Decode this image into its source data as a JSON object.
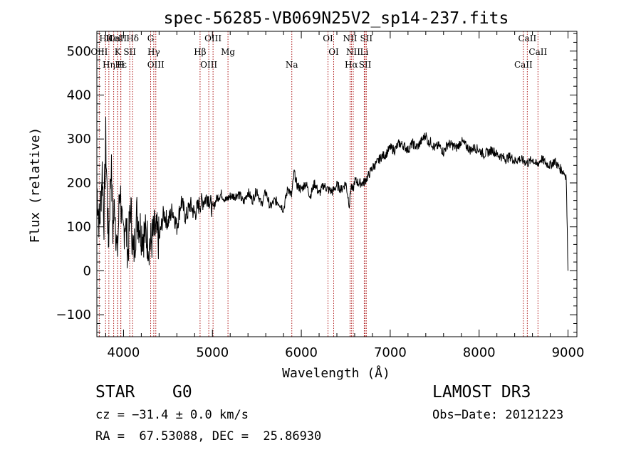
{
  "chart_data": {
    "type": "line",
    "title": "spec-56285-VB069N25V2_sp14-237.fits",
    "xlabel": "Wavelength (Å)",
    "ylabel": "Flux (relative)",
    "xlim": [
      3700,
      9100
    ],
    "ylim": [
      -150,
      545
    ],
    "x_ticks": [
      4000,
      5000,
      6000,
      7000,
      8000,
      9000
    ],
    "y_ticks": [
      -100,
      0,
      100,
      200,
      300,
      400,
      500
    ],
    "series_color": "#000000",
    "line_color": "#b22222",
    "series": [
      {
        "name": "spectrum",
        "x": [
          3700,
          3730,
          3760,
          3780,
          3800,
          3830,
          3860,
          3880,
          3900,
          3930,
          3960,
          3990,
          4020,
          4050,
          4080,
          4110,
          4150,
          4200,
          4250,
          4300,
          4350,
          4400,
          4450,
          4500,
          4550,
          4600,
          4650,
          4700,
          4750,
          4800,
          4850,
          4900,
          4950,
          5000,
          5050,
          5100,
          5150,
          5200,
          5250,
          5300,
          5350,
          5400,
          5450,
          5500,
          5550,
          5600,
          5650,
          5700,
          5750,
          5800,
          5850,
          5890,
          5920,
          5950,
          6000,
          6050,
          6100,
          6150,
          6200,
          6250,
          6300,
          6350,
          6400,
          6450,
          6500,
          6540,
          6560,
          6580,
          6600,
          6650,
          6700,
          6750,
          6800,
          6850,
          6900,
          6950,
          7000,
          7050,
          7100,
          7150,
          7200,
          7250,
          7300,
          7350,
          7400,
          7430,
          7450,
          7500,
          7550,
          7600,
          7650,
          7700,
          7750,
          7800,
          7850,
          7900,
          7950,
          8000,
          8050,
          8100,
          8150,
          8200,
          8250,
          8300,
          8350,
          8400,
          8450,
          8500,
          8550,
          8600,
          8650,
          8700,
          8750,
          8800,
          8850,
          8900,
          8950,
          8980,
          9000
        ],
        "y": [
          190,
          100,
          230,
          120,
          300,
          60,
          250,
          90,
          160,
          30,
          200,
          70,
          120,
          40,
          150,
          30,
          130,
          90,
          80,
          60,
          90,
          70,
          130,
          110,
          140,
          100,
          160,
          120,
          150,
          130,
          150,
          160,
          170,
          140,
          165,
          175,
          160,
          170,
          170,
          175,
          155,
          180,
          160,
          185,
          150,
          180,
          145,
          160,
          155,
          140,
          190,
          170,
          225,
          195,
          185,
          200,
          170,
          200,
          175,
          195,
          185,
          180,
          195,
          185,
          200,
          150,
          195,
          180,
          205,
          200,
          200,
          215,
          235,
          245,
          260,
          265,
          280,
          275,
          290,
          285,
          275,
          290,
          280,
          295,
          310,
          290,
          295,
          280,
          285,
          270,
          290,
          285,
          280,
          295,
          285,
          275,
          280,
          275,
          265,
          270,
          275,
          265,
          260,
          255,
          260,
          250,
          255,
          250,
          245,
          255,
          240,
          255,
          245,
          240,
          250,
          235,
          225,
          215,
          0
        ]
      }
    ],
    "lines": [
      {
        "label": "CaII",
        "x": 3934
      },
      {
        "label": "OIII",
        "x": 3727
      },
      {
        "label": "Hε",
        "x": 3970
      },
      {
        "label": "Hδ",
        "x": 4102
      },
      {
        "label": "K",
        "x": 3934
      },
      {
        "label": "H",
        "x": 3968
      },
      {
        "label": "HeI",
        "x": 3889
      },
      {
        "label": "SII",
        "x": 4070
      },
      {
        "label": "Hη",
        "x": 3835
      },
      {
        "label": "Hθ",
        "x": 3798
      },
      {
        "label": "Hγ",
        "x": 4340
      },
      {
        "label": "OIII",
        "x": 4363
      },
      {
        "label": "G",
        "x": 4305
      },
      {
        "label": "Hβ",
        "x": 4861
      },
      {
        "label": "OIII",
        "x": 4959
      },
      {
        "label": "OIII",
        "x": 5007
      },
      {
        "label": "Mg",
        "x": 5175
      },
      {
        "label": "Na",
        "x": 5893
      },
      {
        "label": "OI",
        "x": 6300
      },
      {
        "label": "OI",
        "x": 6364
      },
      {
        "label": "Hα",
        "x": 6563
      },
      {
        "label": "NII",
        "x": 6548
      },
      {
        "label": "NII",
        "x": 6584
      },
      {
        "label": "SII",
        "x": 6717
      },
      {
        "label": "SII",
        "x": 6731
      },
      {
        "label": "Li",
        "x": 6708
      },
      {
        "label": "CaII",
        "x": 8498
      },
      {
        "label": "CaII",
        "x": 8542
      },
      {
        "label": "CaII",
        "x": 8662
      }
    ]
  },
  "info": {
    "object_class": "STAR",
    "subclass": "G0",
    "survey": "LAMOST DR3",
    "redshift_line": "cz = −31.4 ± 0.0 km/s",
    "obs_date": "Obs−Date: 20121223",
    "coords": "RA =  67.53088, DEC =  25.86930"
  }
}
